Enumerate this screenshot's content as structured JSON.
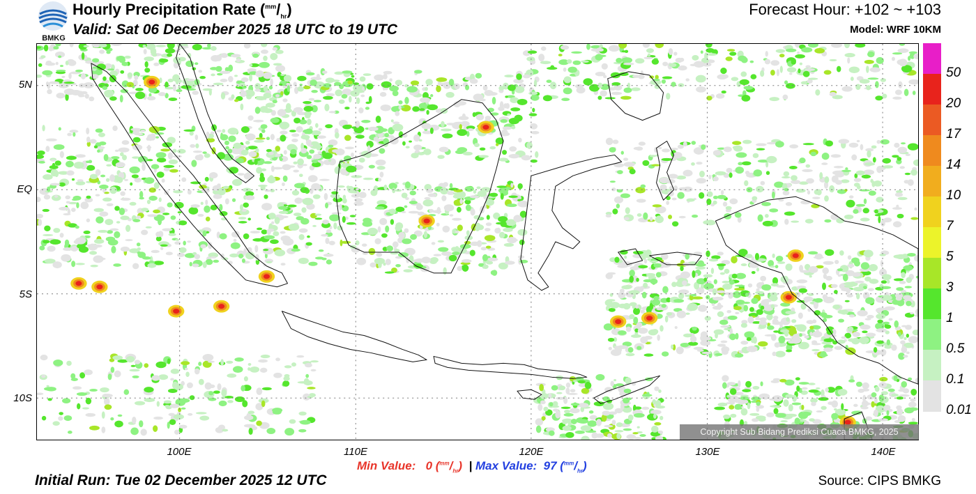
{
  "header": {
    "logo_text": "BMKG",
    "title": "Hourly Precipitation Rate (",
    "title_unit_num": "mm",
    "title_unit_den": "hr",
    "title_end": ")",
    "valid": "Valid: Sat 06 December 2025 18 UTC to 19 UTC",
    "forecast_hour": "Forecast Hour: +102 ~ +103",
    "model": "Model: WRF 10KM"
  },
  "map": {
    "lat_labels": [
      "5N",
      "EQ",
      "5S",
      "10S"
    ],
    "lon_labels": [
      "100E",
      "110E",
      "120E",
      "130E",
      "140E"
    ],
    "copyright": "Copyright Sub Bidang Prediksi Cuaca BMKG, 2025"
  },
  "legend": {
    "labels": [
      "50",
      "20",
      "17",
      "14",
      "10",
      "7",
      "5",
      "3",
      "1",
      "0.5",
      "0.1",
      "0.01"
    ],
    "colors": [
      "#e81ec8",
      "#e8231c",
      "#eb5a23",
      "#ef8a1e",
      "#f1ad1e",
      "#f0d21e",
      "#ecf32a",
      "#a8e628",
      "#55e62d",
      "#8ef282",
      "#c6f1c2",
      "#e3e3e3"
    ]
  },
  "footer": {
    "min_label": "Min Value:",
    "min_value": "0",
    "max_label": "Max Value:",
    "max_value": "97",
    "unit_num": "mm",
    "unit_den": "hr",
    "separator": "|",
    "initial_run": "Initial Run: Tue 02 December 2025 12 UTC",
    "source": "Source: CIPS BMKG"
  }
}
